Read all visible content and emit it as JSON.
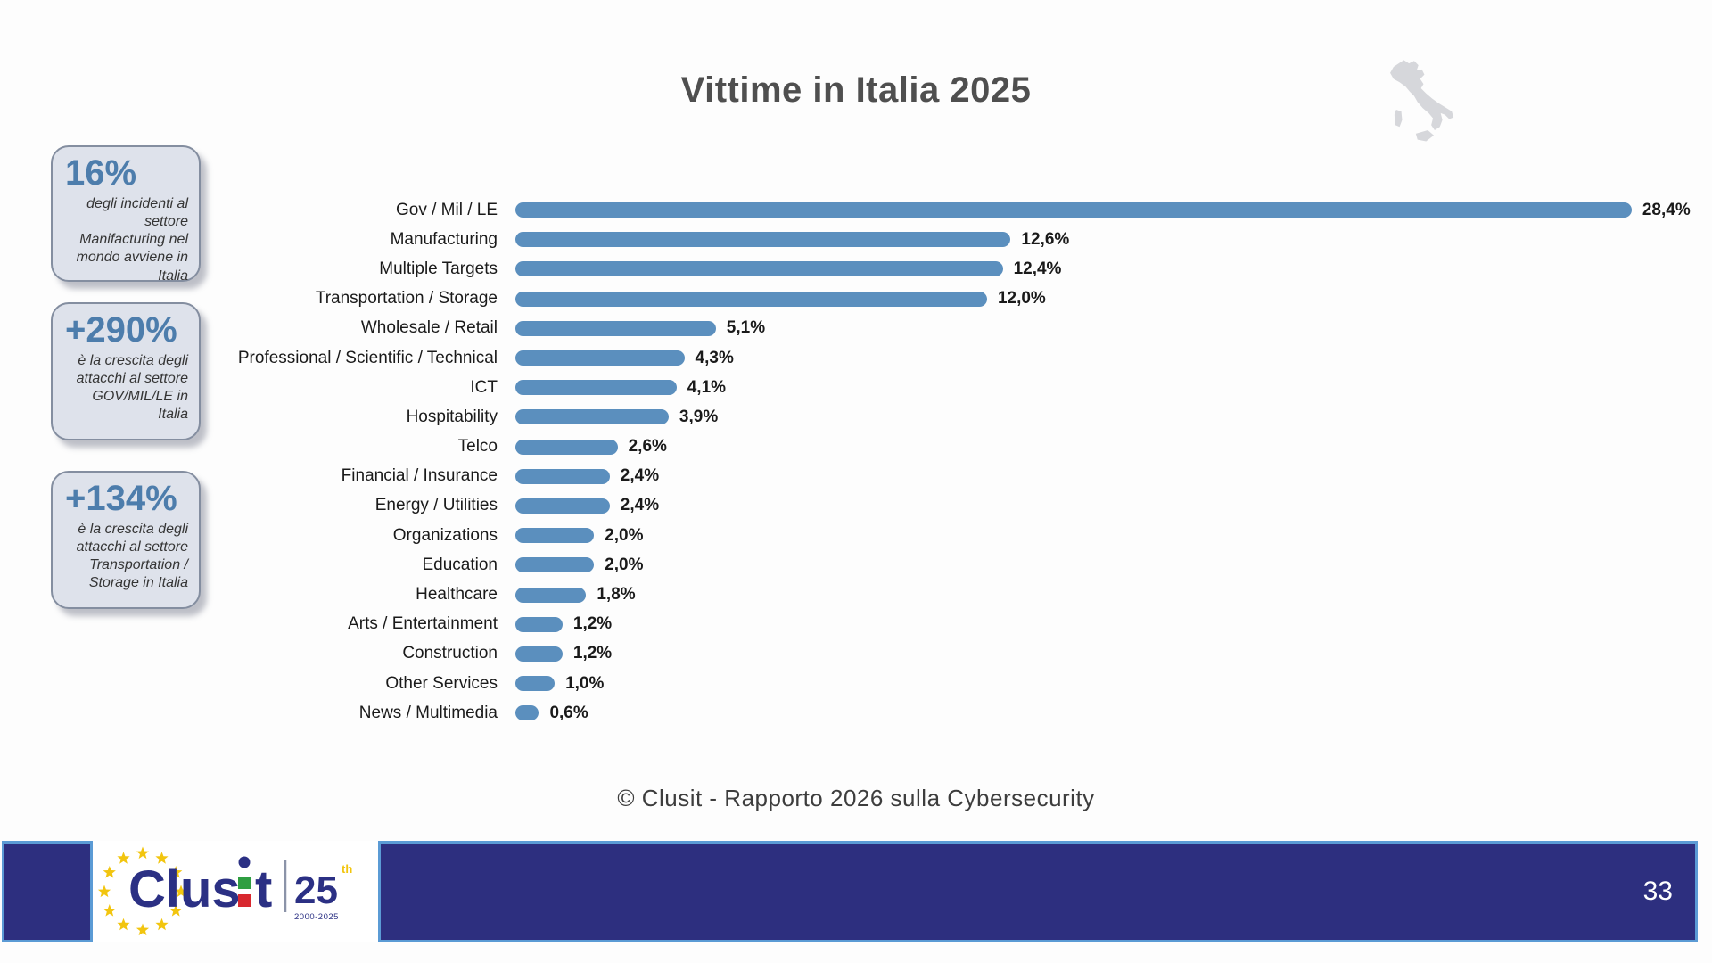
{
  "title": "Vittime in Italia 2025",
  "callouts": [
    {
      "value": "16%",
      "text": "degli incidenti al settore Manifacturing nel mondo avviene in Italia"
    },
    {
      "value": "+290%",
      "text": "è la crescita degli attacchi al settore GOV/MIL/LE in Italia"
    },
    {
      "value": "+134%",
      "text": "è la crescita degli attacchi al settore Transportation / Storage in Italia"
    }
  ],
  "chart_data": {
    "type": "bar",
    "orientation": "horizontal",
    "title": "Vittime in Italia 2025",
    "categories": [
      "Gov / Mil / LE",
      "Manufacturing",
      "Multiple Targets",
      "Transportation / Storage",
      "Wholesale / Retail",
      "Professional / Scientific / Technical",
      "ICT",
      "Hospitability",
      "Telco",
      "Financial / Insurance",
      "Energy / Utilities",
      "Organizations",
      "Education",
      "Healthcare",
      "Arts / Entertainment",
      "Construction",
      "Other Services",
      "News / Multimedia"
    ],
    "values": [
      28.4,
      12.6,
      12.4,
      12.0,
      5.1,
      4.3,
      4.1,
      3.9,
      2.6,
      2.4,
      2.4,
      2.0,
      2.0,
      1.8,
      1.2,
      1.2,
      1.0,
      0.6
    ],
    "value_labels": [
      "28,4%",
      "12,6%",
      "12,4%",
      "12,0%",
      "5,1%",
      "4,3%",
      "4,1%",
      "3,9%",
      "2,6%",
      "2,4%",
      "2,4%",
      "2,0%",
      "2,0%",
      "1,8%",
      "1,2%",
      "1,2%",
      "1,0%",
      "0,6%"
    ],
    "bar_color": "#5b8fbe",
    "xlim": [
      0,
      30
    ],
    "grid": false,
    "legend": false,
    "value_label_position": "end-of-bar"
  },
  "footer": {
    "copyright": "© Clusit - Rapporto 2026 sulla Cybersecurity",
    "page_number": "33",
    "logo": {
      "text_left": "Clus",
      "text_right": "t",
      "badge": "25",
      "badge_sup": "th",
      "badge_years": "2000-2025"
    }
  },
  "colors": {
    "bar": "#5b8fbe",
    "callout_number": "#4d7dac",
    "callout_fill": "#dee2eb",
    "footer_navy": "#2d2f7f",
    "footer_edge": "#5b9bd5",
    "star_gold": "#f2c50f",
    "logo_navy": "#2b3084",
    "logo_green": "#2f9e41",
    "logo_red": "#d8282f",
    "map_gray": "#d6d7db"
  }
}
